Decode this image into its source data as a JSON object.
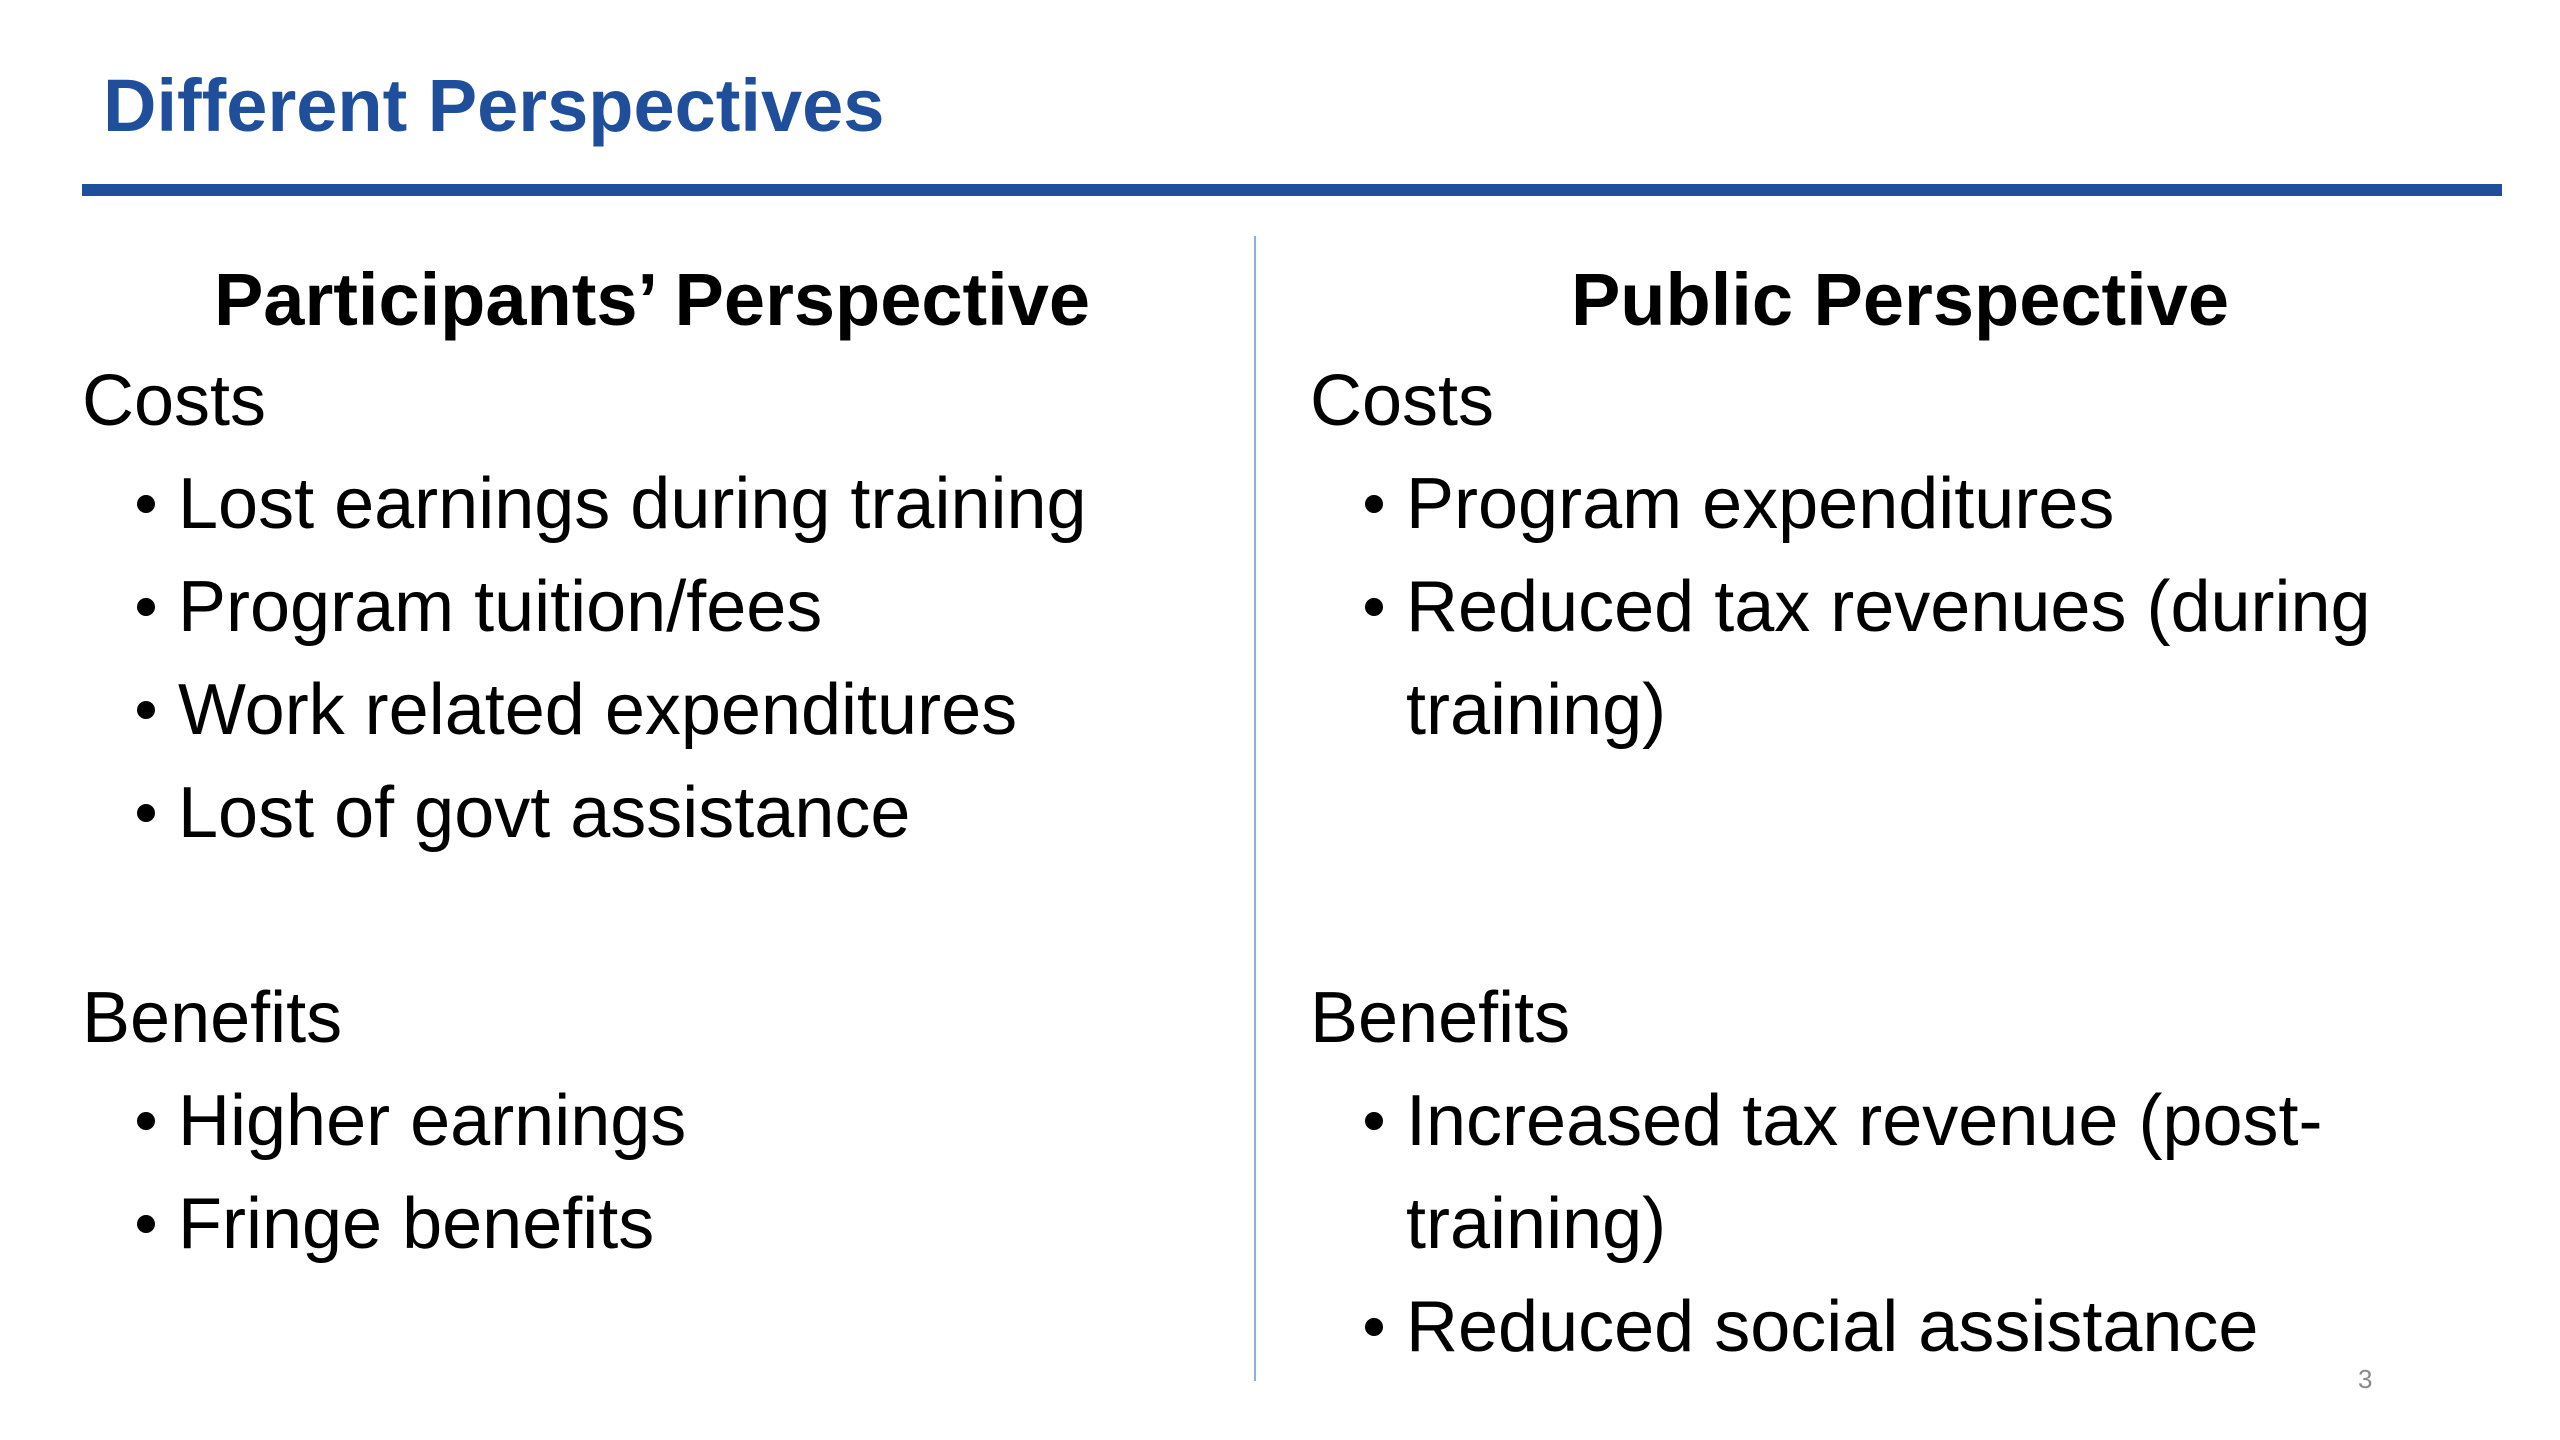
{
  "slide": {
    "title": "Different Perspectives",
    "page_number": "3"
  },
  "left_column": {
    "heading": "Participants’ Perspective",
    "costs_label": "Costs",
    "costs_items": [
      "Lost earnings during training",
      "Program tuition/fees",
      "Work related expenditures",
      "Lost of govt assistance"
    ],
    "benefits_label": "Benefits",
    "benefits_items": [
      "Higher earnings",
      "Fringe benefits"
    ]
  },
  "right_column": {
    "heading": "Public Perspective",
    "costs_label": "Costs",
    "costs_items": [
      "Program expenditures",
      "Reduced tax revenues (during training)"
    ],
    "benefits_label": "Benefits",
    "benefits_items": [
      "Increased tax revenue (post-training)",
      "Reduced social assistance"
    ]
  },
  "colors": {
    "title": "#1f4e9a",
    "title_rule": "#1f4e9a",
    "column_divider": "#8fb1d9",
    "page_number": "#8a8a8a"
  }
}
